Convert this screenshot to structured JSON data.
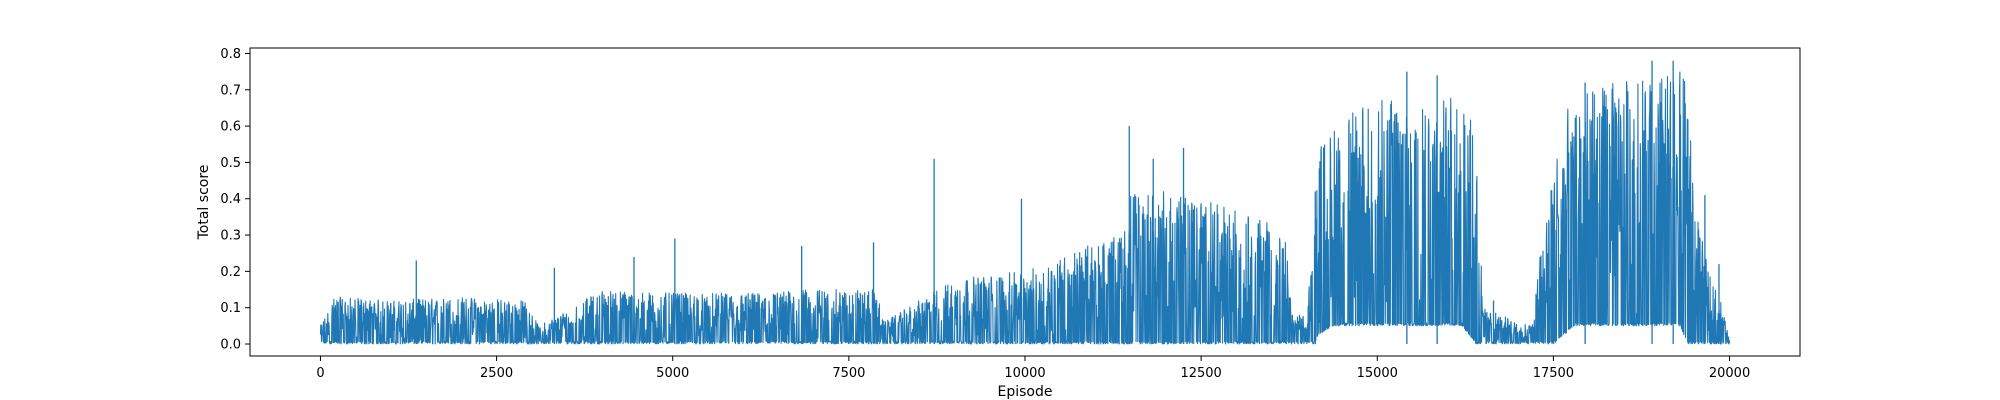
{
  "chart_data": {
    "type": "line",
    "title": "",
    "xlabel": "Episode",
    "ylabel": "Total score",
    "xlim": [
      -1000,
      21000
    ],
    "ylim": [
      -0.033,
      0.815
    ],
    "x_ticks": [
      0,
      2500,
      5000,
      7500,
      10000,
      12500,
      15000,
      17500,
      20000
    ],
    "x_tick_labels": [
      "0",
      "2500",
      "5000",
      "7500",
      "10000",
      "12500",
      "15000",
      "17500",
      "20000"
    ],
    "y_ticks": [
      0.0,
      0.1,
      0.2,
      0.3,
      0.4,
      0.5,
      0.6,
      0.7,
      0.8
    ],
    "y_tick_labels": [
      "0.0",
      "0.1",
      "0.2",
      "0.3",
      "0.4",
      "0.5",
      "0.6",
      "0.7",
      "0.8"
    ],
    "grid": false,
    "legend": "none",
    "series": [
      {
        "color": "#1f77b4",
        "x_range": [
          0,
          20000
        ],
        "envelope": {
          "episode": [
            0,
            200,
            1000,
            2000,
            2900,
            3100,
            4000,
            5000,
            6000,
            7000,
            7900,
            8000,
            9000,
            10000,
            10500,
            11000,
            11400,
            11500,
            12000,
            12500,
            13000,
            13500,
            13700,
            13800,
            14000,
            14100,
            14200,
            14400,
            14800,
            15200,
            15500,
            16000,
            16200,
            16400,
            16500,
            17000,
            17200,
            17300,
            17500,
            17700,
            17800,
            18200,
            18500,
            19000,
            19300,
            19400,
            19500,
            19700,
            19800,
            20000
          ],
          "typical_peak": [
            0.05,
            0.13,
            0.12,
            0.13,
            0.12,
            0.05,
            0.15,
            0.14,
            0.14,
            0.15,
            0.15,
            0.06,
            0.18,
            0.2,
            0.24,
            0.28,
            0.3,
            0.42,
            0.42,
            0.4,
            0.37,
            0.33,
            0.28,
            0.08,
            0.08,
            0.38,
            0.55,
            0.6,
            0.66,
            0.68,
            0.68,
            0.68,
            0.68,
            0.6,
            0.1,
            0.06,
            0.05,
            0.25,
            0.5,
            0.65,
            0.68,
            0.71,
            0.73,
            0.74,
            0.75,
            0.72,
            0.4,
            0.2,
            0.18,
            0.02
          ],
          "typical_floor": [
            0.0,
            0.0,
            0.0,
            0.0,
            0.0,
            0.0,
            0.0,
            0.0,
            0.0,
            0.0,
            0.0,
            0.0,
            0.0,
            0.0,
            0.0,
            0.0,
            0.0,
            0.0,
            0.0,
            0.0,
            0.0,
            0.0,
            0.0,
            0.0,
            0.0,
            0.0,
            0.03,
            0.05,
            0.05,
            0.05,
            0.05,
            0.05,
            0.05,
            0.0,
            0.0,
            0.0,
            0.0,
            0.0,
            0.0,
            0.03,
            0.05,
            0.05,
            0.05,
            0.05,
            0.05,
            0.0,
            0.0,
            0.0,
            0.0,
            0.0
          ]
        },
        "notable_spikes": [
          {
            "x": 1360,
            "y": 0.23
          },
          {
            "x": 3320,
            "y": 0.21
          },
          {
            "x": 4450,
            "y": 0.24
          },
          {
            "x": 5030,
            "y": 0.29
          },
          {
            "x": 6830,
            "y": 0.27
          },
          {
            "x": 7850,
            "y": 0.28
          },
          {
            "x": 8710,
            "y": 0.51
          },
          {
            "x": 9950,
            "y": 0.4
          },
          {
            "x": 11480,
            "y": 0.6
          },
          {
            "x": 11820,
            "y": 0.51
          },
          {
            "x": 12250,
            "y": 0.54
          },
          {
            "x": 14120,
            "y": 0.42
          },
          {
            "x": 15420,
            "y": 0.75
          },
          {
            "x": 15850,
            "y": 0.74
          },
          {
            "x": 16650,
            "y": 0.12
          },
          {
            "x": 17950,
            "y": 0.72
          },
          {
            "x": 18900,
            "y": 0.78
          },
          {
            "x": 19200,
            "y": 0.78
          },
          {
            "x": 19650,
            "y": 0.41
          },
          {
            "x": 19850,
            "y": 0.22
          }
        ]
      }
    ]
  }
}
